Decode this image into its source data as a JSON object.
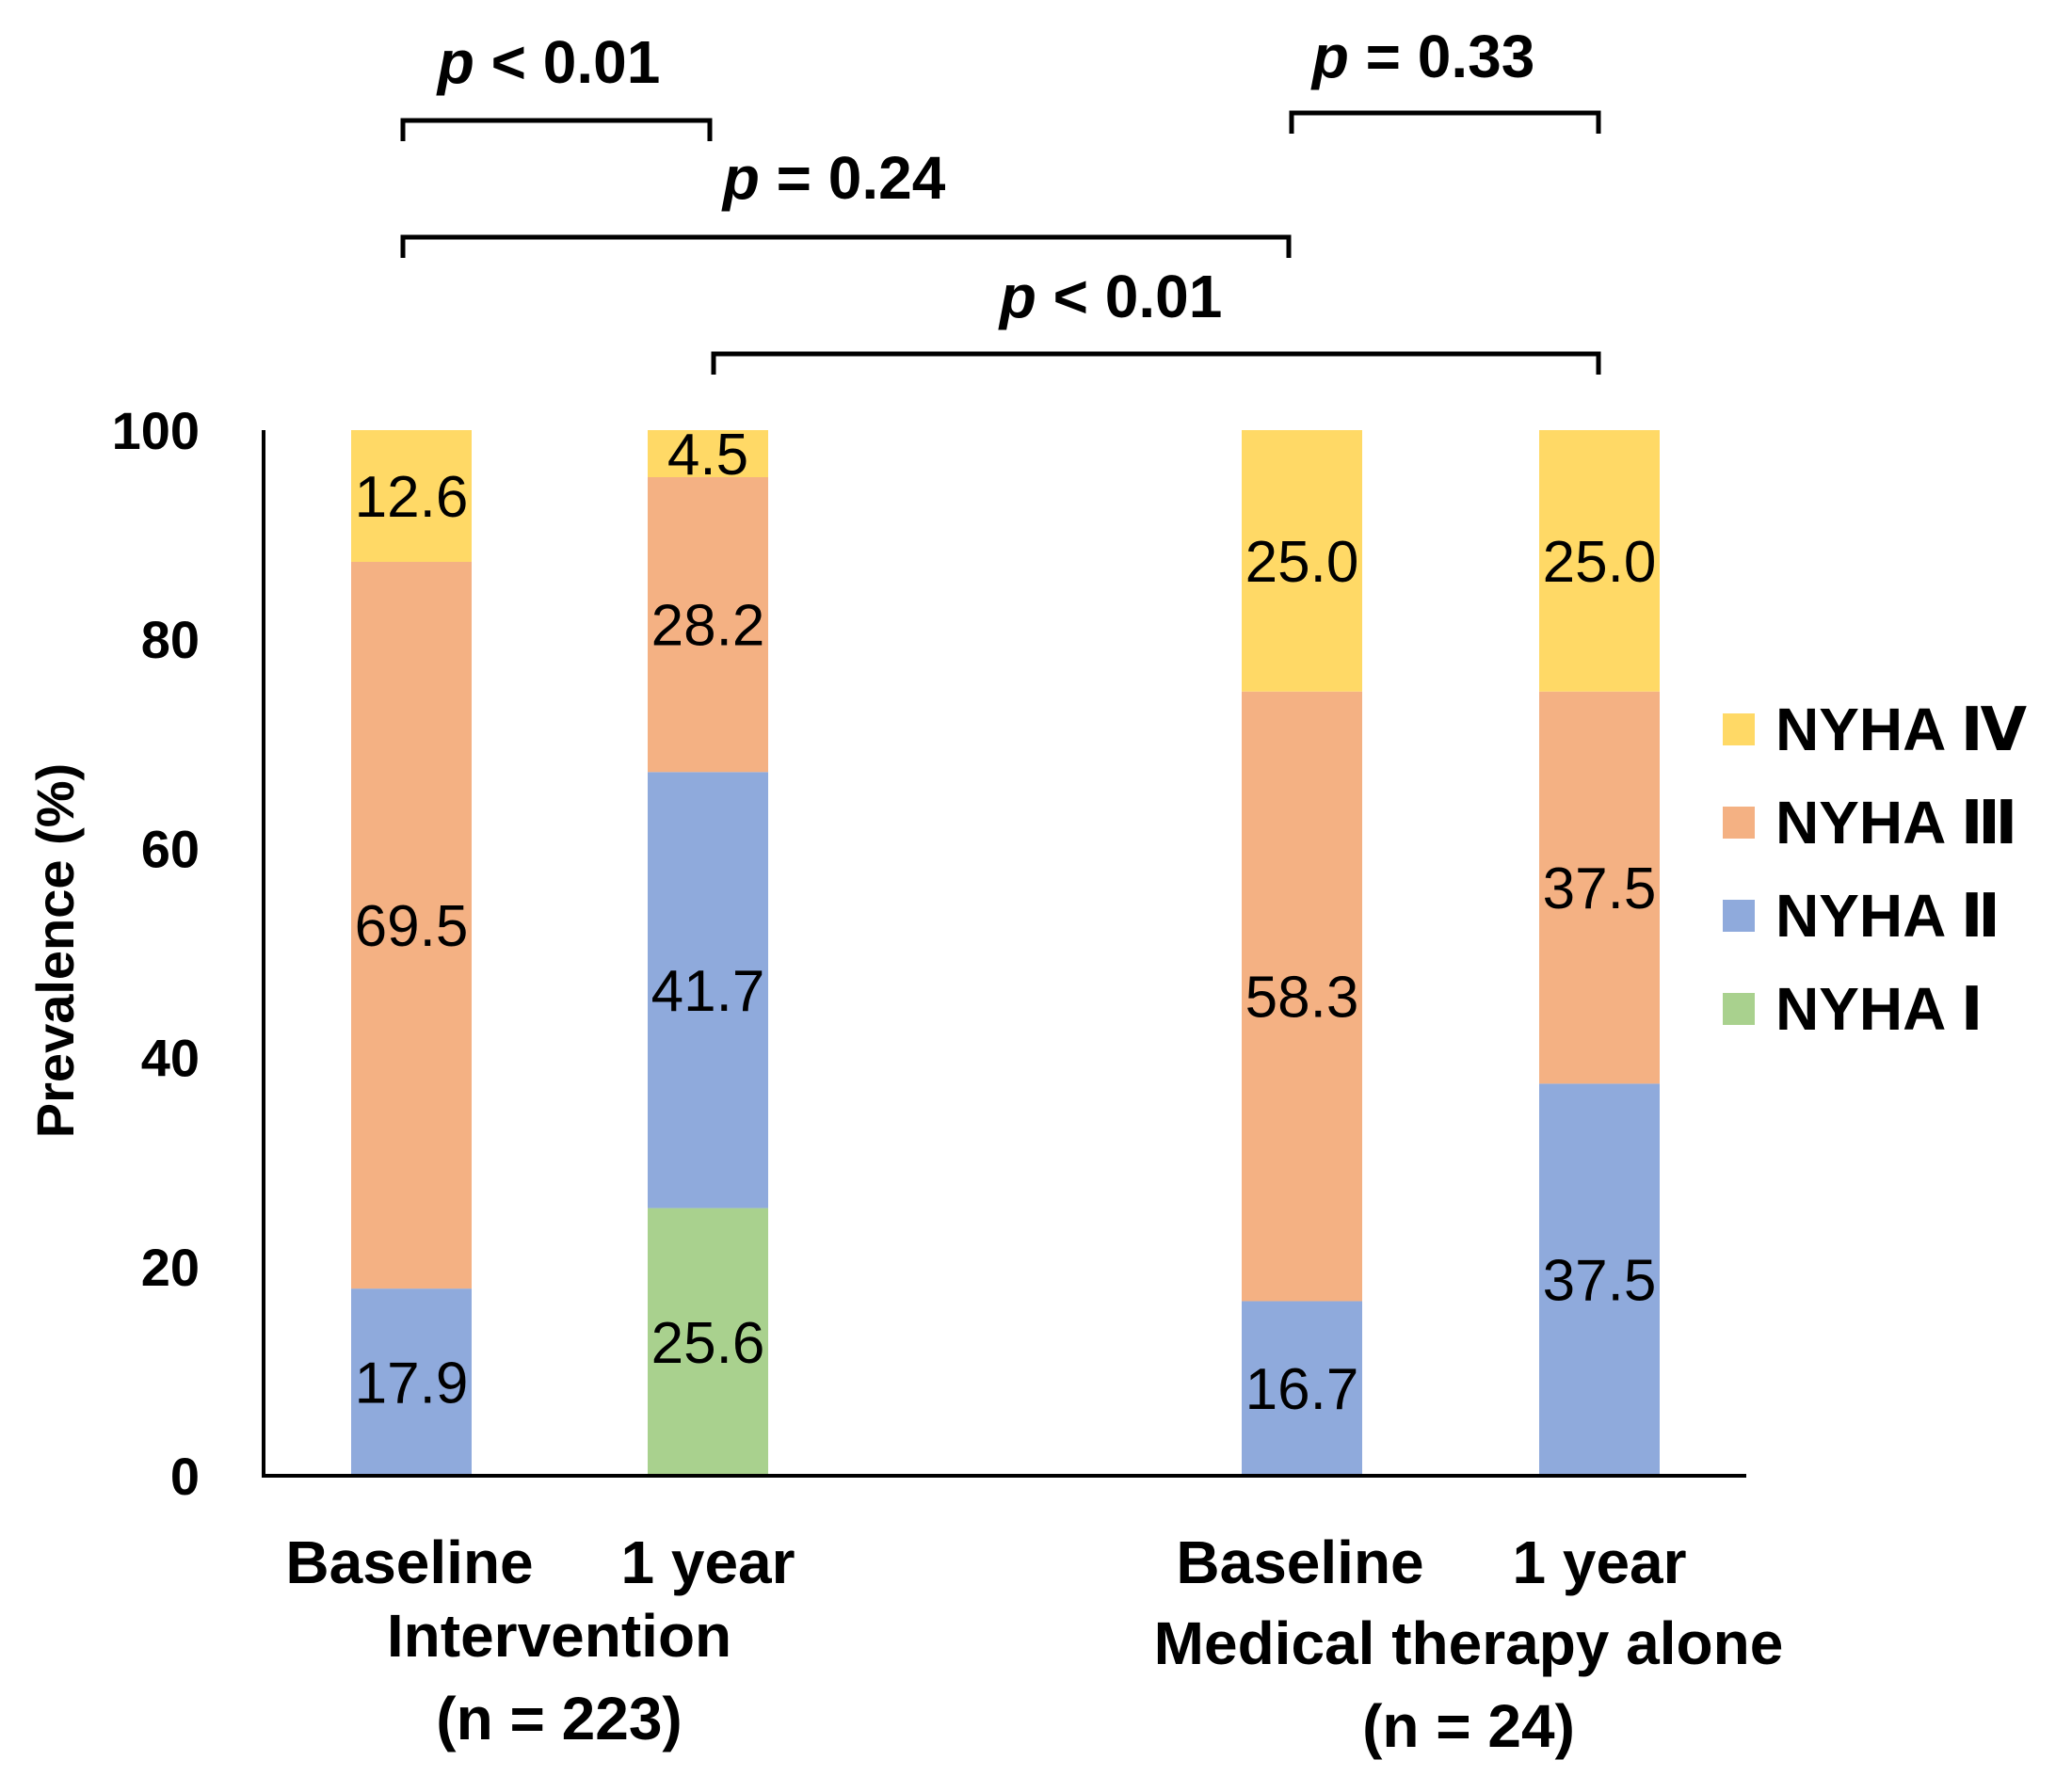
{
  "chart_data": {
    "type": "bar",
    "stacked": true,
    "ylabel": "Prevalence (%)",
    "ylim": [
      0,
      100
    ],
    "yticks": [
      0,
      20,
      40,
      60,
      80,
      100
    ],
    "categories": [
      "Baseline",
      "1 year",
      "Baseline",
      "1 year"
    ],
    "groups": [
      {
        "name": "Intervention",
        "n": "(n = 223)"
      },
      {
        "name": "Medical therapy alone",
        "n": "(n = 24)"
      }
    ],
    "series": [
      {
        "name": "NYHA Ⅰ",
        "color": "#a9d18e",
        "values": [
          0,
          25.6,
          0,
          0
        ],
        "labels": [
          "",
          "25.6",
          "",
          ""
        ]
      },
      {
        "name": "NYHA Ⅱ",
        "color": "#8faadc",
        "values": [
          17.9,
          41.7,
          16.7,
          37.5
        ],
        "labels": [
          "17.9",
          "41.7",
          "16.7",
          "37.5"
        ]
      },
      {
        "name": "NYHA Ⅲ",
        "color": "#f4b183",
        "values": [
          69.5,
          28.2,
          58.3,
          37.5
        ],
        "labels": [
          "69.5",
          "28.2",
          "58.3",
          "37.5"
        ]
      },
      {
        "name": "NYHA Ⅳ",
        "color": "#ffd966",
        "values": [
          12.6,
          4.5,
          25.0,
          25.0
        ],
        "labels": [
          "12.6",
          "4.5",
          "25.0",
          "25.0"
        ]
      }
    ],
    "legend_order": [
      "NYHA Ⅳ",
      "NYHA Ⅲ",
      "NYHA Ⅱ",
      "NYHA Ⅰ"
    ],
    "legend_position": "right",
    "comparisons": [
      {
        "from": 0,
        "to": 1,
        "p_symbol": "p",
        "p_value": "< 0.01"
      },
      {
        "from": 2,
        "to": 3,
        "p_symbol": "p",
        "p_value": "= 0.33"
      },
      {
        "from": 0,
        "to": 2,
        "p_symbol": "p",
        "p_value": "= 0.24"
      },
      {
        "from": 1,
        "to": 3,
        "p_symbol": "p",
        "p_value": "< 0.01"
      }
    ]
  }
}
